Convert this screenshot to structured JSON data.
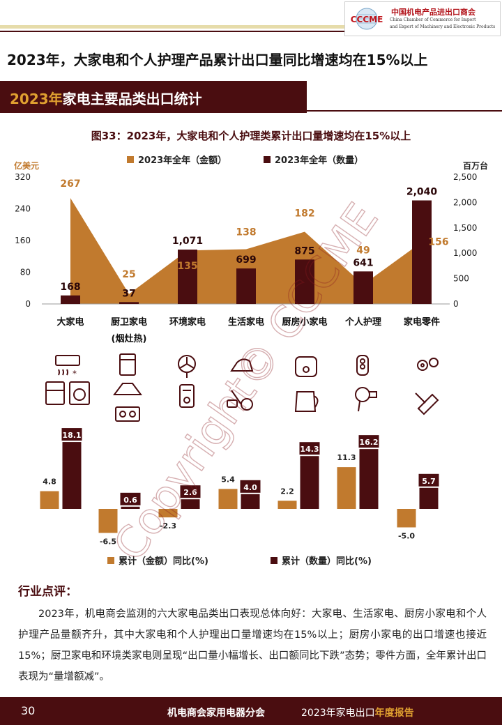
{
  "header": {
    "logo_text": "CCCME",
    "org_cn": "中国机电产品进出口商会",
    "org_en_1": "China Chamber of Commerce for Import",
    "org_en_2": "and Export of Machinery and Electronic Products"
  },
  "page_title": "2023年，大家电和个人护理产品累计出口量同比增速均在15%以上",
  "section": {
    "year": "2023年",
    "rest": "家电主要品类出口统计"
  },
  "figure_title": "图33：2023年，大家电和个人护理类累计出口量增速均在15%以上",
  "chart_data": [
    {
      "type": "bar",
      "categories": [
        "大家电",
        "厨卫家电",
        "环境家电",
        "生活家电",
        "厨房小家电",
        "个人护理",
        "家电零件"
      ],
      "category_sublabels": [
        "",
        "(烟灶热)",
        "",
        "",
        "",
        "",
        ""
      ],
      "series": [
        {
          "name": "2023年全年（金额）",
          "chart_type": "area",
          "axis": "left",
          "values": [
            267,
            25,
            135,
            138,
            182,
            49,
            156
          ],
          "color": "#c17a2e"
        },
        {
          "name": "2023年全年（数量）",
          "chart_type": "bar",
          "axis": "right",
          "values": [
            168,
            37,
            1071,
            699,
            875,
            641,
            2040
          ],
          "color": "#4a0d10"
        }
      ],
      "y_left": {
        "unit": "亿美元",
        "ticks": [
          "320",
          "240",
          "160",
          "80",
          "0"
        ],
        "range": [
          0,
          320
        ]
      },
      "y_right": {
        "unit": "百万台",
        "ticks": [
          "2,500",
          "2,000",
          "1,500",
          "1,000",
          "500",
          "0"
        ],
        "range": [
          0,
          2500
        ]
      },
      "grid": false,
      "legend_position": "top"
    },
    {
      "type": "bar",
      "categories": [
        "大家电",
        "厨卫家电",
        "环境家电",
        "生活家电",
        "厨房小家电",
        "个人护理",
        "家电零件"
      ],
      "series": [
        {
          "name": "累计（金额）同比(%)",
          "values": [
            4.8,
            -6.5,
            -2.3,
            5.4,
            2.2,
            11.3,
            -5.0
          ],
          "color": "#c17a2e"
        },
        {
          "name": "累计（数量）同比(%)",
          "values": [
            18.1,
            0.6,
            2.6,
            4.0,
            14.3,
            16.2,
            5.7
          ],
          "color": "#4a0d10"
        }
      ],
      "grid": false,
      "legend_position": "bottom"
    }
  ],
  "icons": [
    "air-conditioner-fridge-washer-icon",
    "range-hood-stove-icon",
    "fan-air-purifier-icon",
    "iron-vacuum-icon",
    "rice-cooker-kettle-icon",
    "shaver-hair-dryer-icon",
    "gears-tools-icon"
  ],
  "comment": {
    "title": "行业点评：",
    "text": "2023年，机电商会监测的六大家电品类出口表现总体向好：大家电、生活家电、厨房小家电和个人护理产品量额齐升，其中大家电和个人护理出口量增速均在15%以上；厨房小家电的出口增速也接近15%；厨卫家电和环境类家电则呈现“出口量小幅增长、出口额同比下跌”态势；零件方面，全年累计出口表现为“量增额减”。"
  },
  "footer": {
    "page": "30",
    "org": "机电商会家用电器分会",
    "report_a": "2023年家电出口",
    "report_b": "年度报告"
  },
  "watermark": "Copyright© CCCME",
  "colors": {
    "gold": "#c17a2e",
    "maroon": "#4a0d10",
    "accent_yellow": "#e0a030"
  }
}
